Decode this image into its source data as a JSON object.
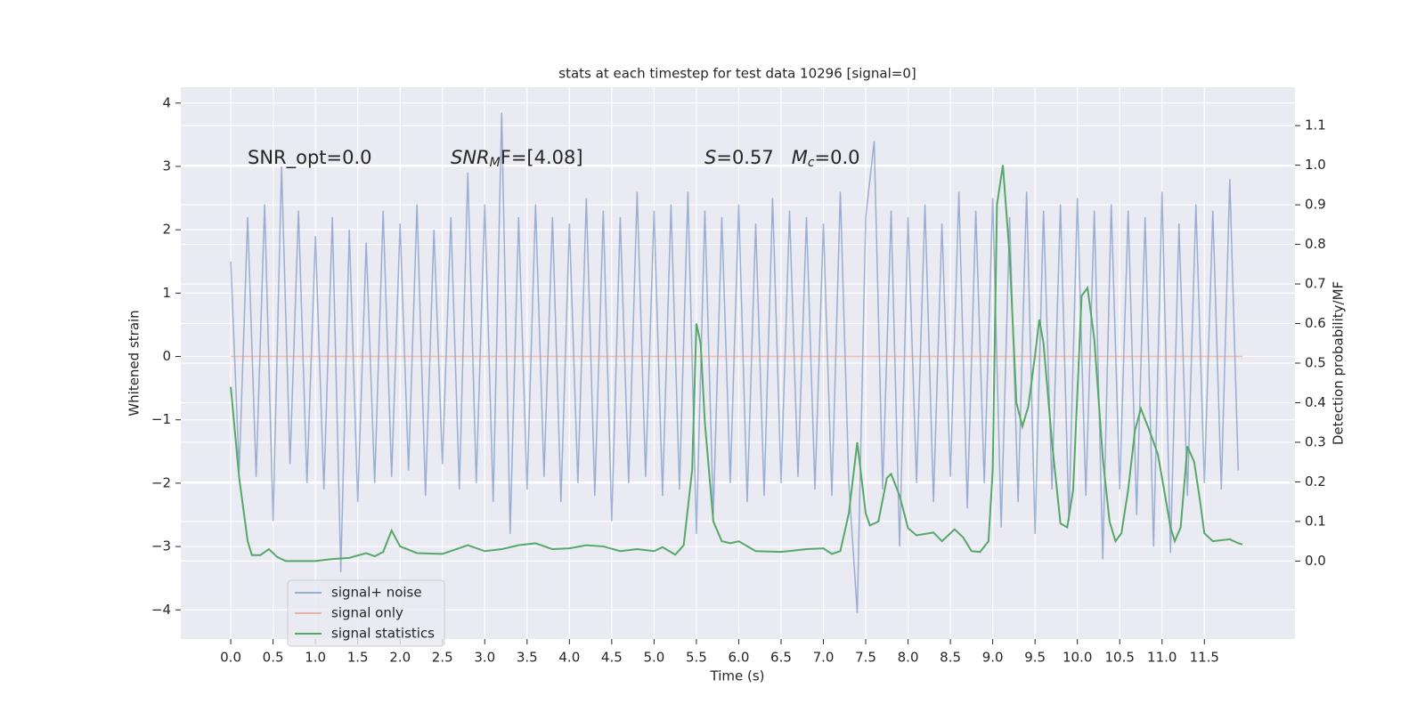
{
  "chart_data": {
    "type": "line",
    "title": "stats at each timestep for test data 10296 [signal=0]",
    "x_label": "Time (s)",
    "y_label": "Whitened strain",
    "y2_label": "Detection probability/MF",
    "annotations": [
      [
        {
          "text": "SNR_opt=0.0",
          "style": "normal"
        }
      ],
      [
        {
          "text": "SNR",
          "style": "italic"
        },
        {
          "text": "M",
          "style": "italic-sub"
        },
        {
          "text": "F=[4.08]",
          "style": "normal"
        }
      ],
      [
        {
          "text": "S",
          "style": "italic"
        },
        {
          "text": "=0.57",
          "style": "normal"
        },
        {
          "text": "M",
          "style": "italic"
        },
        {
          "text": "c",
          "style": "italic-sub"
        },
        {
          "text": "=0.0",
          "style": "normal"
        }
      ]
    ],
    "xlim": [
      -0.59,
      12.57
    ],
    "ylim": [
      -4.46,
      4.25
    ],
    "y2lim": [
      -0.197,
      1.197
    ],
    "xticks": [
      {
        "value": 0,
        "label": "0.0"
      },
      0.5,
      {
        "value": 1,
        "label": "1.0"
      },
      1.5,
      {
        "value": 2,
        "label": "2.0"
      },
      2.5,
      {
        "value": 3,
        "label": "3.0"
      },
      3.5,
      {
        "value": 4,
        "label": "4.0"
      },
      4.5,
      {
        "value": 5,
        "label": "5.0"
      },
      5.5,
      {
        "value": 6,
        "label": "6.0"
      },
      6.5,
      {
        "value": 7,
        "label": "7.0"
      },
      7.5,
      {
        "value": 8,
        "label": "8.0"
      },
      8.5,
      {
        "value": 9,
        "label": "9.0"
      },
      9.5,
      {
        "value": 10,
        "label": "10.0"
      },
      10.5,
      {
        "value": 11,
        "label": "11.0"
      },
      11.5
    ],
    "yticks": [
      {
        "value": -4,
        "label": "−4"
      },
      {
        "value": -3,
        "label": "−3"
      },
      {
        "value": -2,
        "label": "−2"
      },
      {
        "value": -1,
        "label": "−1"
      },
      0,
      1,
      2,
      3,
      4
    ],
    "y2ticks": [
      {
        "value": 0,
        "label": "0.0"
      },
      0.1,
      0.2,
      0.3,
      0.4,
      0.5,
      0.6,
      0.7,
      0.8,
      0.9,
      {
        "value": 1,
        "label": "1.0"
      },
      1.1
    ],
    "grid": true,
    "legend": "lower left",
    "series": [
      {
        "name": "signal+ noise",
        "color": "#4c72b0",
        "opacity": 0.5,
        "x": [
          0,
          0.1,
          0.2,
          0.3,
          0.4,
          0.5,
          0.6,
          0.7,
          0.8,
          0.9,
          1,
          1.1,
          1.2,
          1.3,
          1.4,
          1.5,
          1.6,
          1.7,
          1.8,
          1.9,
          2,
          2.1,
          2.2,
          2.3,
          2.4,
          2.5,
          2.6,
          2.7,
          2.8,
          2.9,
          3,
          3.1,
          3.2,
          3.3,
          3.4,
          3.5,
          3.6,
          3.7,
          3.8,
          3.9,
          4,
          4.1,
          4.2,
          4.3,
          4.4,
          4.5,
          4.6,
          4.7,
          4.8,
          4.9,
          5,
          5.1,
          5.2,
          5.3,
          5.4,
          5.5,
          5.6,
          5.7,
          5.8,
          5.9,
          6,
          6.1,
          6.2,
          6.3,
          6.4,
          6.5,
          6.6,
          6.7,
          6.8,
          6.9,
          7,
          7.1,
          7.2,
          7.3,
          7.4,
          7.5,
          7.6,
          7.7,
          7.8,
          7.9,
          8,
          8.1,
          8.2,
          8.3,
          8.4,
          8.5,
          8.6,
          8.7,
          8.8,
          8.9,
          9,
          9.1,
          9.2,
          9.3,
          9.4,
          9.5,
          9.6,
          9.7,
          9.8,
          9.9,
          10,
          10.1,
          10.2,
          10.3,
          10.4,
          10.5,
          10.6,
          10.7,
          10.8,
          10.9,
          11,
          11.1,
          11.2,
          11.3,
          11.4,
          11.5,
          11.6,
          11.7,
          11.8,
          11.9
        ],
        "values": [
          1.5,
          -1.8,
          2.2,
          -1.9,
          2.4,
          -2.6,
          3.0,
          -1.7,
          2.3,
          -2.0,
          1.9,
          -2.1,
          2.2,
          -3.4,
          2.0,
          -2.3,
          1.8,
          -2.0,
          2.3,
          -1.9,
          2.1,
          -1.8,
          2.4,
          -2.2,
          2.0,
          -1.7,
          2.2,
          -2.1,
          2.9,
          -2.0,
          2.4,
          -2.3,
          3.85,
          -2.8,
          2.2,
          -2.1,
          2.4,
          -1.9,
          2.2,
          -2.3,
          2.1,
          -2.0,
          2.5,
          -2.2,
          2.3,
          -2.6,
          2.2,
          -2.0,
          2.6,
          -1.9,
          2.3,
          -2.2,
          2.4,
          -2.1,
          2.6,
          -2.8,
          2.3,
          -2.5,
          2.2,
          -2.0,
          2.4,
          -2.3,
          2.1,
          -2.2,
          2.5,
          -2.0,
          2.3,
          -1.9,
          2.2,
          -2.1,
          2.1,
          -2.2,
          2.6,
          -2.0,
          -4.05,
          2.2,
          3.4,
          -2.1,
          2.3,
          -3.0,
          2.2,
          -2.0,
          2.4,
          -2.3,
          2.1,
          -1.9,
          2.6,
          -2.4,
          2.3,
          -2.0,
          2.5,
          -2.7,
          2.2,
          -2.3,
          2.6,
          -2.8,
          2.3,
          -2.1,
          2.4,
          -2.6,
          2.5,
          -2.2,
          2.3,
          -3.2,
          2.4,
          -2.1,
          2.3,
          -2.5,
          2.2,
          -3.0,
          2.6,
          -3.1,
          2.1,
          -2.2,
          2.4,
          -2.0,
          2.3,
          -2.1,
          2.8,
          -1.8
        ]
      },
      {
        "name": "signal only",
        "color": "#dd8452",
        "opacity": 0.5,
        "x": [
          0,
          11.95
        ],
        "values": [
          0,
          0
        ]
      },
      {
        "name": "signal statistics",
        "color": "#55a868",
        "opacity": 1,
        "axis": "y2",
        "x": [
          0,
          0.1,
          0.2,
          0.25,
          0.35,
          0.45,
          0.55,
          0.65,
          0.8,
          1,
          1.2,
          1.4,
          1.6,
          1.7,
          1.8,
          1.9,
          2,
          2.2,
          2.5,
          2.8,
          3,
          3.2,
          3.4,
          3.6,
          3.8,
          4,
          4.2,
          4.4,
          4.6,
          4.8,
          5,
          5.1,
          5.25,
          5.35,
          5.45,
          5.5,
          5.55,
          5.6,
          5.7,
          5.8,
          5.9,
          6,
          6.2,
          6.5,
          6.8,
          7,
          7.1,
          7.2,
          7.3,
          7.4,
          7.45,
          7.5,
          7.55,
          7.65,
          7.75,
          7.8,
          7.9,
          8,
          8.1,
          8.3,
          8.4,
          8.55,
          8.65,
          8.75,
          8.85,
          8.95,
          9,
          9.05,
          9.12,
          9.2,
          9.28,
          9.35,
          9.42,
          9.5,
          9.55,
          9.6,
          9.7,
          9.8,
          9.88,
          9.95,
          10.05,
          10.12,
          10.2,
          10.3,
          10.38,
          10.45,
          10.52,
          10.6,
          10.68,
          10.75,
          10.85,
          10.95,
          11,
          11.1,
          11.15,
          11.22,
          11.3,
          11.38,
          11.45,
          11.5,
          11.6,
          11.8,
          11.9,
          11.95
        ],
        "values": [
          0.44,
          0.21,
          0.05,
          0.015,
          0.015,
          0.03,
          0.01,
          0.0,
          0.0,
          0.0,
          0.005,
          0.008,
          0.02,
          0.012,
          0.023,
          0.077,
          0.037,
          0.02,
          0.018,
          0.04,
          0.025,
          0.03,
          0.04,
          0.045,
          0.03,
          0.032,
          0.04,
          0.037,
          0.025,
          0.03,
          0.025,
          0.035,
          0.016,
          0.04,
          0.23,
          0.6,
          0.55,
          0.35,
          0.1,
          0.05,
          0.045,
          0.05,
          0.025,
          0.023,
          0.03,
          0.032,
          0.018,
          0.025,
          0.12,
          0.3,
          0.21,
          0.12,
          0.09,
          0.1,
          0.21,
          0.22,
          0.165,
          0.083,
          0.065,
          0.072,
          0.05,
          0.08,
          0.06,
          0.025,
          0.023,
          0.05,
          0.23,
          0.9,
          1.0,
          0.77,
          0.4,
          0.34,
          0.39,
          0.52,
          0.61,
          0.55,
          0.3,
          0.095,
          0.085,
          0.18,
          0.67,
          0.69,
          0.56,
          0.26,
          0.1,
          0.05,
          0.07,
          0.18,
          0.33,
          0.385,
          0.33,
          0.27,
          0.21,
          0.085,
          0.05,
          0.085,
          0.29,
          0.25,
          0.15,
          0.07,
          0.05,
          0.055,
          0.045,
          0.042
        ]
      }
    ]
  }
}
